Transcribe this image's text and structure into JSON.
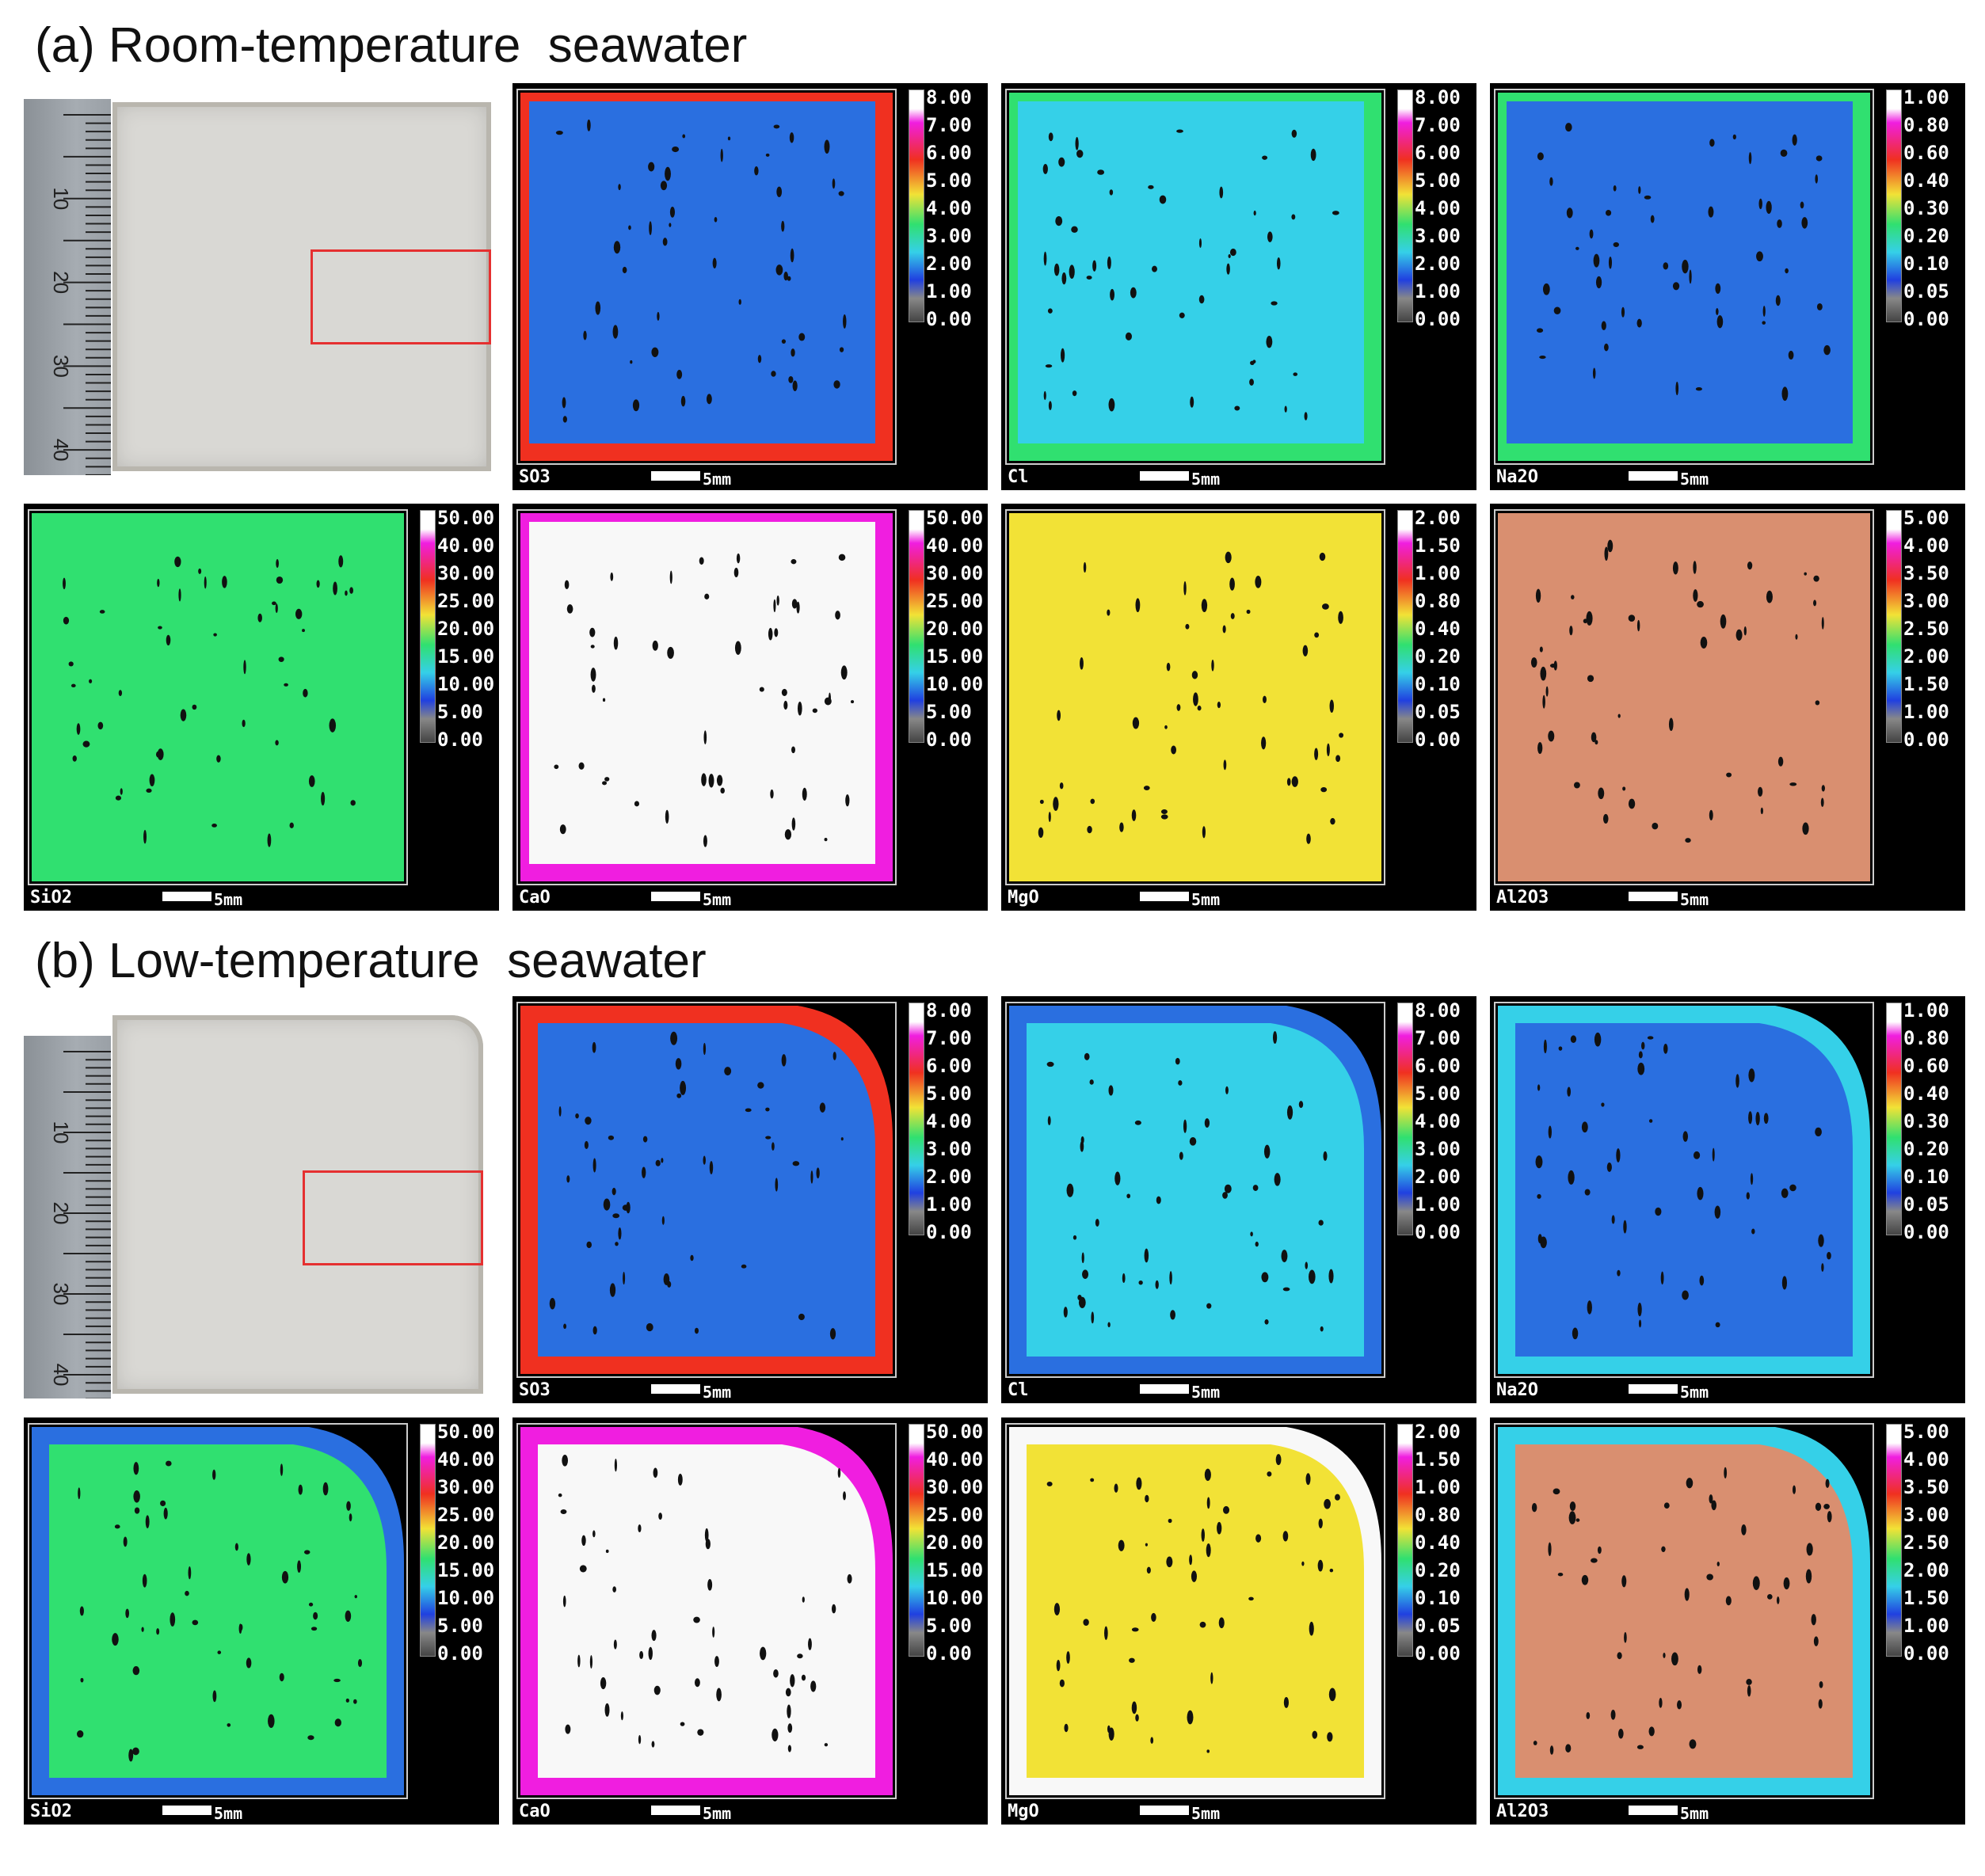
{
  "sections": [
    {
      "id": "a",
      "title": "(a) Room-temperature  seawater"
    },
    {
      "id": "b",
      "title": "(b) Low-temperature  seawater"
    }
  ],
  "ruler_labels": [
    "10",
    "20",
    "30",
    "40"
  ],
  "scale_label": "5mm",
  "colors": {
    "blue": "#2a6fe0",
    "cyan": "#35d0e8",
    "green": "#30e070",
    "yellow": "#f2e236",
    "salmon": "#d98f70",
    "white": "#f8f8f8",
    "magenta": "#f01ee0",
    "red": "#f03020"
  },
  "scales": {
    "so3": [
      "8.00",
      "7.00",
      "6.00",
      "5.00",
      "4.00",
      "3.00",
      "2.00",
      "1.00",
      "0.00"
    ],
    "cl": [
      "8.00",
      "7.00",
      "6.00",
      "5.00",
      "4.00",
      "3.00",
      "2.00",
      "1.00",
      "0.00"
    ],
    "na2o": [
      "1.00",
      "0.80",
      "0.60",
      "0.40",
      "0.30",
      "0.20",
      "0.10",
      "0.05",
      "0.00"
    ],
    "sio2": [
      "50.00",
      "40.00",
      "30.00",
      "25.00",
      "20.00",
      "15.00",
      "10.00",
      "5.00",
      "0.00"
    ],
    "cao": [
      "50.00",
      "40.00",
      "30.00",
      "25.00",
      "20.00",
      "15.00",
      "10.00",
      "5.00",
      "0.00"
    ],
    "mgo": [
      "2.00",
      "1.50",
      "1.00",
      "0.80",
      "0.40",
      "0.20",
      "0.10",
      "0.05",
      "0.00"
    ],
    "al2o3": [
      "5.00",
      "4.00",
      "3.50",
      "3.00",
      "2.50",
      "2.00",
      "1.50",
      "1.00",
      "0.00"
    ]
  },
  "maps": {
    "a": {
      "row1": [
        {
          "label": "SO3",
          "scale": "so3",
          "fill": "blue",
          "edge": "red"
        },
        {
          "label": "Cl",
          "scale": "cl",
          "fill": "cyan",
          "edge": "green"
        },
        {
          "label": "Na2O",
          "scale": "na2o",
          "fill": "blue",
          "edge": "green"
        }
      ],
      "row2": [
        {
          "label": "SiO2",
          "scale": "sio2",
          "fill": "green",
          "edge": "green"
        },
        {
          "label": "CaO",
          "scale": "cao",
          "fill": "white",
          "edge": "magenta"
        },
        {
          "label": "MgO",
          "scale": "mgo",
          "fill": "yellow",
          "edge": "yellow"
        },
        {
          "label": "Al2O3",
          "scale": "al2o3",
          "fill": "salmon",
          "edge": "salmon"
        }
      ]
    },
    "b": {
      "row1": [
        {
          "label": "SO3",
          "scale": "so3",
          "fill": "blue",
          "edge": "red"
        },
        {
          "label": "Cl",
          "scale": "cl",
          "fill": "cyan",
          "edge": "blue"
        },
        {
          "label": "Na2O",
          "scale": "na2o",
          "fill": "blue",
          "edge": "cyan"
        }
      ],
      "row2": [
        {
          "label": "SiO2",
          "scale": "sio2",
          "fill": "green",
          "edge": "blue"
        },
        {
          "label": "CaO",
          "scale": "cao",
          "fill": "white",
          "edge": "magenta"
        },
        {
          "label": "MgO",
          "scale": "mgo",
          "fill": "yellow",
          "edge": "white"
        },
        {
          "label": "Al2O3",
          "scale": "al2o3",
          "fill": "salmon",
          "edge": "cyan"
        }
      ]
    }
  }
}
